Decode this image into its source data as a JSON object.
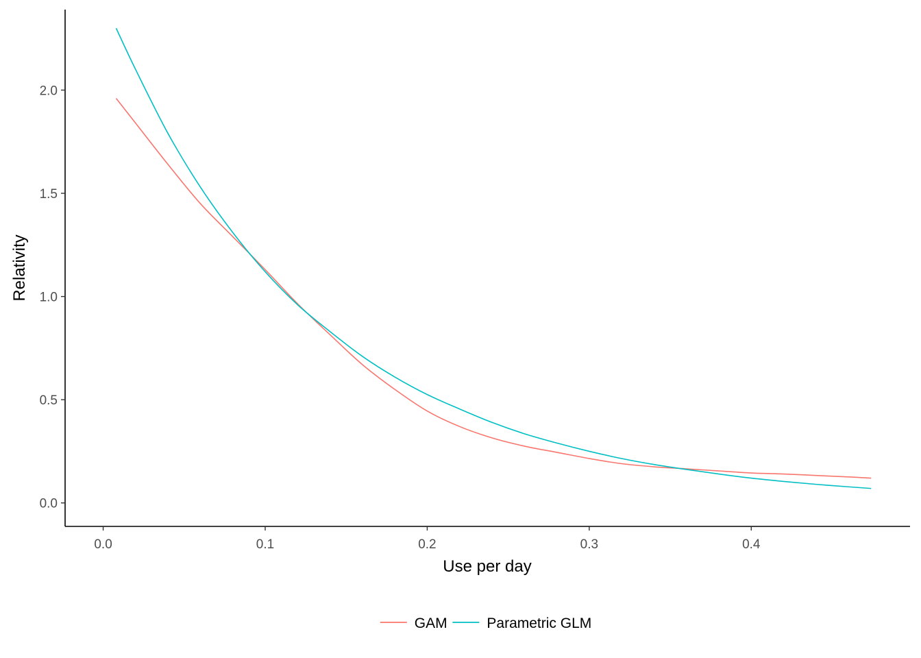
{
  "chart_data": {
    "type": "line",
    "title": "",
    "xlabel": "Use per day",
    "ylabel": "Relativity",
    "xlim": [
      -0.0235,
      0.498
    ],
    "ylim": [
      -0.1138,
      2.39
    ],
    "xticks": [
      0.0,
      0.1,
      0.2,
      0.3,
      0.4
    ],
    "xtick_labels": [
      "0.0",
      "0.1",
      "0.2",
      "0.3",
      "0.4"
    ],
    "yticks": [
      0.0,
      0.5,
      1.0,
      1.5,
      2.0
    ],
    "ytick_labels": [
      "0.0",
      "0.5",
      "1.0",
      "1.5",
      "2.0"
    ],
    "grid": false,
    "legend_position": "bottom",
    "series": [
      {
        "name": "GAM",
        "color": "#F8766D",
        "x": [
          0.008,
          0.02,
          0.04,
          0.06,
          0.08,
          0.1,
          0.12,
          0.14,
          0.16,
          0.18,
          0.2,
          0.22,
          0.24,
          0.26,
          0.28,
          0.3,
          0.32,
          0.34,
          0.36,
          0.38,
          0.4,
          0.42,
          0.44,
          0.46,
          0.474
        ],
        "y": [
          1.96,
          1.84,
          1.64,
          1.45,
          1.29,
          1.13,
          0.965,
          0.815,
          0.67,
          0.55,
          0.445,
          0.37,
          0.315,
          0.275,
          0.245,
          0.215,
          0.19,
          0.175,
          0.165,
          0.155,
          0.145,
          0.14,
          0.133,
          0.126,
          0.12
        ]
      },
      {
        "name": "Parametric GLM",
        "color": "#00BFC4",
        "x": [
          0.008,
          0.02,
          0.04,
          0.06,
          0.08,
          0.1,
          0.12,
          0.14,
          0.16,
          0.18,
          0.2,
          0.22,
          0.24,
          0.26,
          0.28,
          0.3,
          0.32,
          0.34,
          0.36,
          0.38,
          0.4,
          0.42,
          0.44,
          0.46,
          0.474
        ],
        "y": [
          2.3,
          2.1,
          1.79,
          1.53,
          1.31,
          1.12,
          0.96,
          0.83,
          0.71,
          0.61,
          0.525,
          0.455,
          0.39,
          0.335,
          0.29,
          0.25,
          0.215,
          0.186,
          0.162,
          0.14,
          0.12,
          0.104,
          0.09,
          0.078,
          0.07
        ]
      }
    ]
  }
}
